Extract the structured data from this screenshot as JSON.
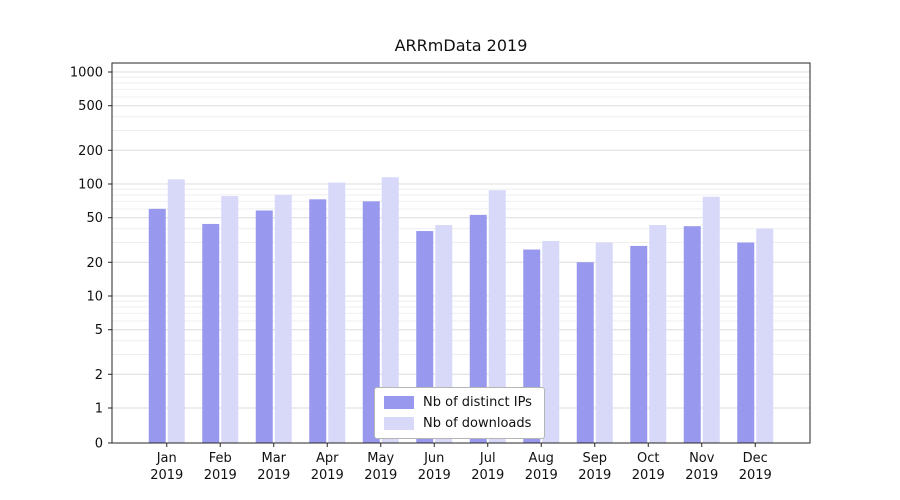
{
  "chart_data": {
    "type": "bar",
    "title": "ARRmData 2019",
    "year": "2019",
    "categories": [
      "Jan",
      "Feb",
      "Mar",
      "Apr",
      "May",
      "Jun",
      "Jul",
      "Aug",
      "Sep",
      "Oct",
      "Nov",
      "Dec"
    ],
    "series": [
      {
        "name": "Nb of distinct IPs",
        "color": "#9898ef",
        "values": [
          60,
          44,
          58,
          73,
          70,
          38,
          53,
          26,
          20,
          28,
          42,
          30
        ]
      },
      {
        "name": "Nb of downloads",
        "color": "#d8d8f8",
        "values": [
          110,
          78,
          80,
          103,
          115,
          43,
          88,
          31,
          30,
          43,
          77,
          40
        ]
      }
    ],
    "yticks": [
      0,
      1,
      2,
      5,
      10,
      20,
      50,
      100,
      200,
      500,
      1000
    ],
    "yscale": "symlog",
    "ylim": [
      0,
      1300
    ],
    "grid": true,
    "legend_position": "lower center",
    "style": {
      "grid_major": "#dcdcdc",
      "grid_minor": "#efefef",
      "axis": "#262626",
      "text": "#111111",
      "background": "#ffffff"
    }
  }
}
